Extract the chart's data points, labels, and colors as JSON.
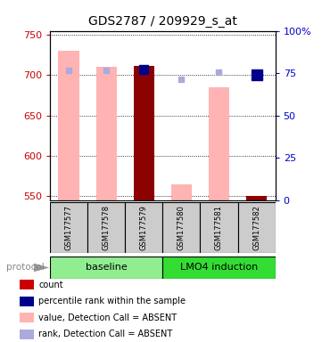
{
  "title": "GDS2787 / 209929_s_at",
  "samples": [
    "GSM177577",
    "GSM177578",
    "GSM177579",
    "GSM177580",
    "GSM177581",
    "GSM177582"
  ],
  "ylim_left": [
    545,
    755
  ],
  "ylim_right": [
    0,
    100
  ],
  "yticks_left": [
    550,
    600,
    650,
    700,
    750
  ],
  "yticks_right": [
    0,
    25,
    50,
    75,
    100
  ],
  "yticklabels_right": [
    "0",
    "25",
    "50",
    "75",
    "100%"
  ],
  "value_bars": [
    730,
    710,
    711,
    565,
    685,
    550
  ],
  "value_bar_colors": [
    "#FFB3B3",
    "#FFB3B3",
    "#8B0000",
    "#FFB3B3",
    "#FFB3B3",
    "#8B0000"
  ],
  "rank_markers_y_left": [
    706,
    706,
    707,
    695,
    704,
    700
  ],
  "rank_marker_colors": [
    "#AAAADD",
    "#AAAADD",
    "#00008B",
    "#AAAADD",
    "#AAAADD",
    "#00008B"
  ],
  "rank_marker_sizes": [
    5,
    5,
    7,
    5,
    5,
    8
  ],
  "protocol_groups": [
    {
      "label": "baseline",
      "samples": [
        0,
        1,
        2
      ],
      "color": "#90EE90"
    },
    {
      "label": "LMO4 induction",
      "samples": [
        3,
        4,
        5
      ],
      "color": "#33DD33"
    }
  ],
  "legend_items": [
    {
      "color": "#CC0000",
      "label": "count"
    },
    {
      "color": "#00008B",
      "label": "percentile rank within the sample"
    },
    {
      "color": "#FFB3B3",
      "label": "value, Detection Call = ABSENT"
    },
    {
      "color": "#AAAADD",
      "label": "rank, Detection Call = ABSENT"
    }
  ],
  "bg_color": "#FFFFFF",
  "plot_bg": "#FFFFFF",
  "label_color_left": "#CC0000",
  "label_color_right": "#0000CC",
  "sample_box_color": "#CCCCCC"
}
